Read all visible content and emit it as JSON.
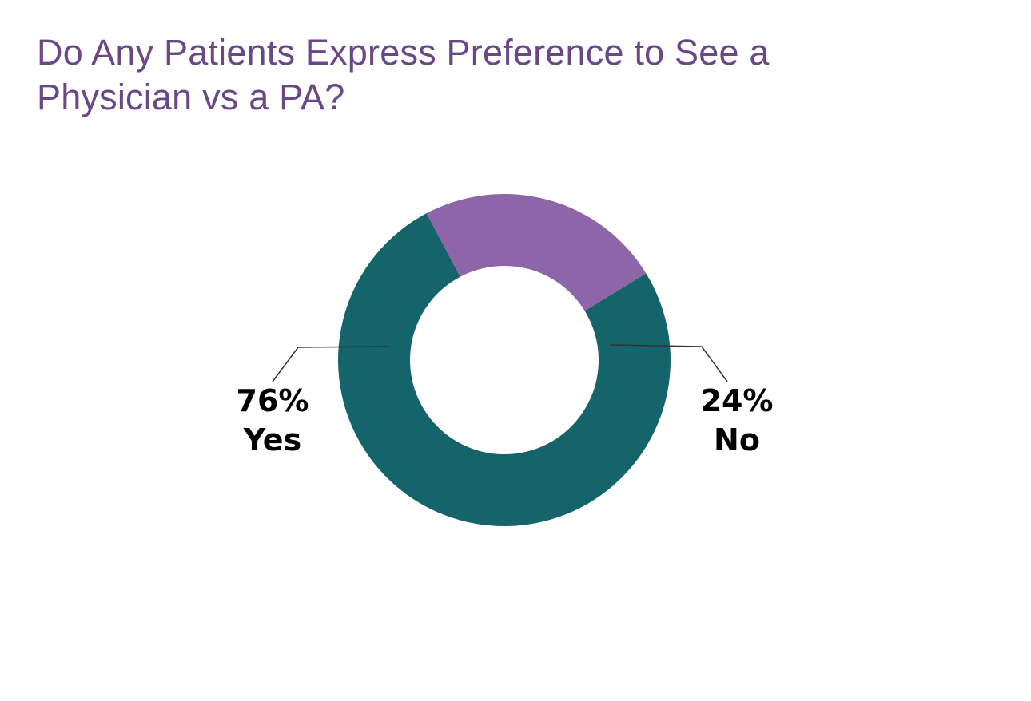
{
  "colors": {
    "title": "#6a4787",
    "yes": "#15636b",
    "no": "#8e65a8",
    "leader": "#333333"
  },
  "chart_data": {
    "type": "pie",
    "variant": "donut",
    "title": "Do Any Patients Express Preference to See a Physician vs a PA?",
    "slices": [
      {
        "label": "Yes",
        "value": 76,
        "value_label": "76%",
        "color": "#15636b"
      },
      {
        "label": "No",
        "value": 24,
        "value_label": "24%",
        "color": "#8e65a8"
      }
    ],
    "legend": "none",
    "grid": false
  }
}
